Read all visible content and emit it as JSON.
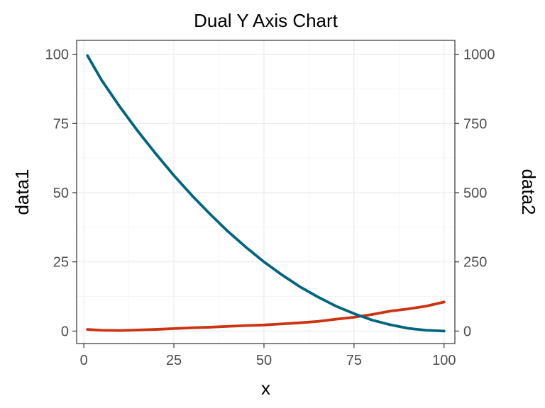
{
  "chart_data": {
    "type": "line",
    "title": "Dual Y Axis Chart",
    "xlabel": "x",
    "ylabel": "data1",
    "ylabel_right": "data2",
    "xlim": [
      -2,
      103
    ],
    "ylim": [
      -4.5,
      105
    ],
    "ylim_right": [
      -45,
      1050
    ],
    "x_ticks": [
      0,
      25,
      50,
      75,
      100
    ],
    "y_ticks": [
      0,
      25,
      50,
      75,
      100
    ],
    "y_ticks_right": [
      0,
      250,
      500,
      750,
      1000
    ],
    "grid": true,
    "x": [
      1,
      5,
      10,
      15,
      20,
      25,
      30,
      35,
      40,
      45,
      50,
      55,
      60,
      65,
      70,
      75,
      80,
      85,
      90,
      95,
      100
    ],
    "series": [
      {
        "name": "data1",
        "axis": "left",
        "color": "#cc3311",
        "values": [
          0.6,
          0.3,
          0.2,
          0.4,
          0.6,
          0.9,
          1.2,
          1.4,
          1.7,
          2.0,
          2.2,
          2.6,
          3.0,
          3.5,
          4.3,
          5.0,
          6.0,
          7.2,
          8.0,
          9.0,
          10.5
        ]
      },
      {
        "name": "data2",
        "axis": "right",
        "color": "#006680",
        "values": [
          995,
          905,
          810,
          722,
          640,
          562,
          490,
          423,
          360,
          303,
          250,
          203,
          160,
          123,
          90,
          63,
          40,
          23,
          10,
          3,
          0
        ]
      }
    ]
  }
}
